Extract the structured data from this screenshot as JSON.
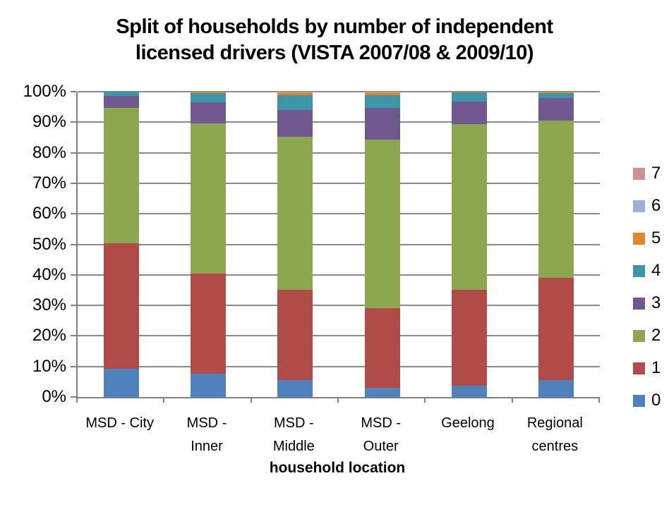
{
  "title": {
    "line1": "Split of households by number of independent",
    "line2": "licensed drivers (VISTA 2007/08 & 2009/10)"
  },
  "chart_data": {
    "type": "bar",
    "variant": "stacked-100-percent-column",
    "title": "Split of households by number of independent licensed drivers (VISTA 2007/08 & 2009/10)",
    "xlabel": "household location",
    "ylabel": "",
    "ylim": [
      0,
      100
    ],
    "ytick_step": 10,
    "ytick_labels": [
      "0%",
      "10%",
      "20%",
      "30%",
      "40%",
      "50%",
      "60%",
      "70%",
      "80%",
      "90%",
      "100%"
    ],
    "grid": true,
    "categories": [
      "MSD - City",
      "MSD - Inner",
      "MSD - Middle",
      "MSD - Outer",
      "Geelong",
      "Regional centres"
    ],
    "category_display": [
      "MSD - City",
      "MSD -\nInner",
      "MSD -\nMiddle",
      "MSD -\nOuter",
      "Geelong",
      "Regional\ncentres"
    ],
    "series": [
      {
        "name": "0",
        "color": "#4F81BD",
        "values": [
          9.2,
          7.6,
          5.6,
          3.0,
          3.7,
          5.6
        ]
      },
      {
        "name": "1",
        "color": "#B04B48",
        "values": [
          41.2,
          32.8,
          29.4,
          26.0,
          31.3,
          33.4
        ]
      },
      {
        "name": "2",
        "color": "#8DA751",
        "values": [
          44.3,
          49.2,
          50.2,
          55.3,
          54.4,
          51.6
        ]
      },
      {
        "name": "3",
        "color": "#71588E",
        "values": [
          3.9,
          6.9,
          8.9,
          10.5,
          7.4,
          7.3
        ]
      },
      {
        "name": "4",
        "color": "#3D95A8",
        "values": [
          1.4,
          3.1,
          4.8,
          4.1,
          2.9,
          1.7
        ]
      },
      {
        "name": "5",
        "color": "#E2862E",
        "values": [
          0,
          0.4,
          0.8,
          0.8,
          0.3,
          0.4
        ]
      },
      {
        "name": "6",
        "color": "#9AB0D7",
        "values": [
          0,
          0,
          0.3,
          0.3,
          0,
          0
        ]
      },
      {
        "name": "7",
        "color": "#CE908E",
        "values": [
          0,
          0,
          0,
          0,
          0,
          0
        ]
      }
    ],
    "legend": {
      "position": "right",
      "order_top_to_bottom": [
        "7",
        "6",
        "5",
        "4",
        "3",
        "2",
        "1",
        "0"
      ]
    }
  },
  "colors": {
    "axis": "#808080",
    "gridline": "#898989",
    "background": "#FFFFFF",
    "text": "#000000"
  }
}
